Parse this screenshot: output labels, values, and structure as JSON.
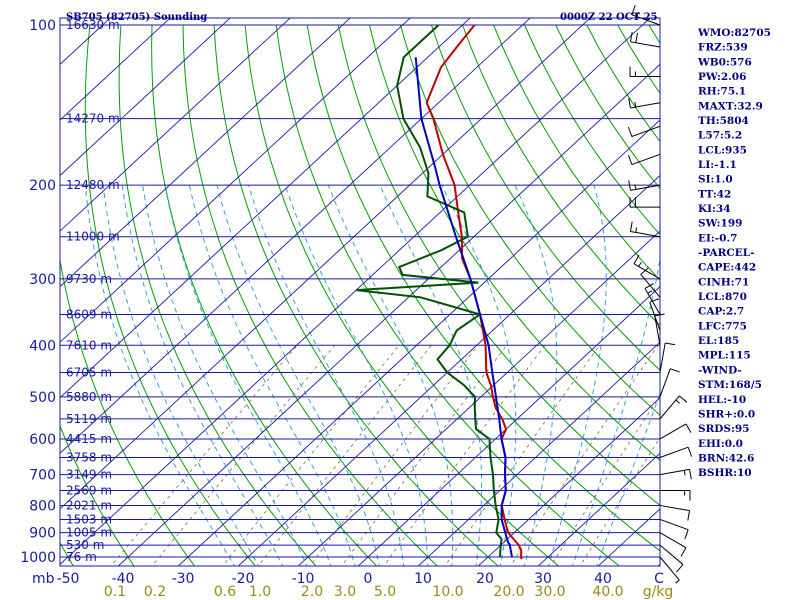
{
  "header": {
    "station_title": "SB705 (82705) Sounding",
    "time_label": "0000Z 22 OCT 25"
  },
  "indices": [
    "WMO:82705",
    "FRZ:539",
    "WB0:576",
    "PW:2.06",
    "RH:75.1",
    "MAXT:32.9",
    "TH:5804",
    "L57:5.2",
    "LCL:935",
    "LI:-1.1",
    "SI:1.0",
    "TT:42",
    "KI:34",
    "SW:199",
    "EI:-0.7",
    "-PARCEL-",
    "CAPE:442",
    "CINH:71",
    "LCL:870",
    "CAP:2.7",
    "LFC:775",
    "EL:185",
    "MPL:115",
    "-WIND-",
    "STM:168/5",
    "HEL:-10",
    "SHR+:0.0",
    "SRDS:95",
    "EHI:0.0",
    "BRN:42.6",
    "BSHR:10"
  ],
  "colors": {
    "isobar": "#1a1aa0",
    "isotherm": "#1a1aa0",
    "dry_adiabat": "#00a000",
    "moist_adiabat": "#3aa0d8",
    "mixing_ratio": "#7a6a3a",
    "temperature": "#c00000",
    "dewpoint": "#005000",
    "parcel": "#0000c0",
    "wind": "#000000"
  },
  "chart_data": {
    "type": "skew-t",
    "x_axis_unit_label": "mb",
    "temperature_axis_unit_label": "C",
    "mixing_ratio_unit_label": "g/kg",
    "pressure_levels": [
      {
        "p": 100,
        "label": "100",
        "height": "16630 m"
      },
      {
        "p": 150,
        "label": "",
        "height": "14270 m"
      },
      {
        "p": 200,
        "label": "200",
        "height": "12480 m"
      },
      {
        "p": 250,
        "label": "",
        "height": "11000 m"
      },
      {
        "p": 300,
        "label": "300",
        "height": "9730 m"
      },
      {
        "p": 350,
        "label": "",
        "height": "8609 m"
      },
      {
        "p": 400,
        "label": "400",
        "height": "7610 m"
      },
      {
        "p": 450,
        "label": "",
        "height": "6705 m"
      },
      {
        "p": 500,
        "label": "500",
        "height": "5880 m"
      },
      {
        "p": 550,
        "label": "",
        "height": "5119 m"
      },
      {
        "p": 600,
        "label": "600",
        "height": "4415 m"
      },
      {
        "p": 650,
        "label": "",
        "height": "3758 m"
      },
      {
        "p": 700,
        "label": "700",
        "height": "3149 m"
      },
      {
        "p": 750,
        "label": "",
        "height": "2569 m"
      },
      {
        "p": 800,
        "label": "800",
        "height": "2021 m"
      },
      {
        "p": 850,
        "label": "",
        "height": "1503 m"
      },
      {
        "p": 900,
        "label": "900",
        "height": "1005 m"
      },
      {
        "p": 950,
        "label": "",
        "height": "530 m"
      },
      {
        "p": 1000,
        "label": "1000",
        "height": "76 m"
      }
    ],
    "temperature_ticks": [
      "-50",
      "-40",
      "-30",
      "-20",
      "-10",
      "0",
      "10",
      "20",
      "30",
      "40",
      "C"
    ],
    "mixing_ratio_ticks": [
      "0.1",
      "0.2",
      "0.6",
      "1.0",
      "2.0",
      "3.0",
      "5.0",
      "10.0",
      "20.0",
      "30.0",
      "40.0",
      "g/kg"
    ],
    "mixing_ratio_values": [
      0.1,
      0.2,
      0.6,
      1.0,
      2.0,
      3.0,
      5.0,
      10.0,
      20.0,
      30.0,
      40.0
    ],
    "temperature_profile": [
      {
        "p": 1009,
        "t": 26.0
      },
      {
        "p": 1000,
        "t": 25.5
      },
      {
        "p": 975,
        "t": 24.5
      },
      {
        "p": 950,
        "t": 23.0
      },
      {
        "p": 925,
        "t": 21.0
      },
      {
        "p": 900,
        "t": 19.0
      },
      {
        "p": 875,
        "t": 17.5
      },
      {
        "p": 850,
        "t": 16.0
      },
      {
        "p": 800,
        "t": 13.0
      },
      {
        "p": 750,
        "t": 11.0
      },
      {
        "p": 700,
        "t": 8.0
      },
      {
        "p": 650,
        "t": 5.0
      },
      {
        "p": 600,
        "t": 1.0
      },
      {
        "p": 575,
        "t": 0.0
      },
      {
        "p": 550,
        "t": -2.5
      },
      {
        "p": 525,
        "t": -5.5
      },
      {
        "p": 500,
        "t": -8.0
      },
      {
        "p": 475,
        "t": -10.5
      },
      {
        "p": 450,
        "t": -13.5
      },
      {
        "p": 400,
        "t": -18.5
      },
      {
        "p": 350,
        "t": -25.0
      },
      {
        "p": 300,
        "t": -33.0
      },
      {
        "p": 275,
        "t": -38.0
      },
      {
        "p": 250,
        "t": -42.0
      },
      {
        "p": 225,
        "t": -47.0
      },
      {
        "p": 200,
        "t": -52.5
      },
      {
        "p": 175,
        "t": -60.0
      },
      {
        "p": 150,
        "t": -68.0
      },
      {
        "p": 140,
        "t": -72.0
      },
      {
        "p": 120,
        "t": -76.0
      },
      {
        "p": 110,
        "t": -77.0
      },
      {
        "p": 100,
        "t": -78.0
      }
    ],
    "dewpoint_profile": [
      {
        "p": 1000,
        "td": 22.0
      },
      {
        "p": 975,
        "td": 21.0
      },
      {
        "p": 950,
        "td": 20.0
      },
      {
        "p": 925,
        "td": 19.0
      },
      {
        "p": 900,
        "td": 17.0
      },
      {
        "p": 850,
        "td": 15.0
      },
      {
        "p": 800,
        "td": 12.0
      },
      {
        "p": 750,
        "td": 9.0
      },
      {
        "p": 700,
        "td": 6.0
      },
      {
        "p": 650,
        "td": 2.5
      },
      {
        "p": 600,
        "td": -1.0
      },
      {
        "p": 575,
        "td": -5.0
      },
      {
        "p": 550,
        "td": -7.0
      },
      {
        "p": 525,
        "td": -9.0
      },
      {
        "p": 500,
        "td": -11.0
      },
      {
        "p": 475,
        "td": -15.0
      },
      {
        "p": 450,
        "td": -20.0
      },
      {
        "p": 425,
        "td": -24.0
      },
      {
        "p": 400,
        "td": -24.5
      },
      {
        "p": 375,
        "td": -26.0
      },
      {
        "p": 350,
        "td": -25.0
      },
      {
        "p": 325,
        "td": -38.0
      },
      {
        "p": 315,
        "td": -50.0
      },
      {
        "p": 305,
        "td": -31.0
      },
      {
        "p": 295,
        "td": -45.0
      },
      {
        "p": 285,
        "td": -47.0
      },
      {
        "p": 265,
        "td": -43.0
      },
      {
        "p": 250,
        "td": -41.0
      },
      {
        "p": 225,
        "td": -46.0
      },
      {
        "p": 210,
        "td": -55.0
      },
      {
        "p": 190,
        "td": -59.0
      },
      {
        "p": 170,
        "td": -65.0
      },
      {
        "p": 150,
        "td": -73.0
      },
      {
        "p": 130,
        "td": -80.0
      },
      {
        "p": 115,
        "td": -84.0
      },
      {
        "p": 100,
        "td": -84.0
      }
    ],
    "parcel_profile": [
      {
        "p": 1000,
        "t": 24.0
      },
      {
        "p": 950,
        "t": 21.5
      },
      {
        "p": 935,
        "t": 20.5
      },
      {
        "p": 900,
        "t": 18.5
      },
      {
        "p": 850,
        "t": 15.5
      },
      {
        "p": 800,
        "t": 13.0
      },
      {
        "p": 750,
        "t": 11.0
      },
      {
        "p": 700,
        "t": 8.0
      },
      {
        "p": 650,
        "t": 5.0
      },
      {
        "p": 600,
        "t": 1.0
      },
      {
        "p": 550,
        "t": -3.0
      },
      {
        "p": 500,
        "t": -7.5
      },
      {
        "p": 450,
        "t": -12.5
      },
      {
        "p": 400,
        "t": -18.0
      },
      {
        "p": 350,
        "t": -25.0
      },
      {
        "p": 300,
        "t": -33.0
      },
      {
        "p": 250,
        "t": -43.0
      },
      {
        "p": 200,
        "t": -55.0
      },
      {
        "p": 185,
        "t": -59.0
      },
      {
        "p": 150,
        "t": -70.0
      },
      {
        "p": 115,
        "t": -82.0
      }
    ],
    "wind_barbs": [
      {
        "p": 100,
        "dir": 290,
        "spd": 15
      },
      {
        "p": 110,
        "dir": 280,
        "spd": 20
      },
      {
        "p": 125,
        "dir": 270,
        "spd": 15
      },
      {
        "p": 140,
        "dir": 260,
        "spd": 15
      },
      {
        "p": 155,
        "dir": 250,
        "spd": 10
      },
      {
        "p": 175,
        "dir": 250,
        "spd": 10
      },
      {
        "p": 200,
        "dir": 260,
        "spd": 15
      },
      {
        "p": 220,
        "dir": 270,
        "spd": 20
      },
      {
        "p": 250,
        "dir": 280,
        "spd": 15
      },
      {
        "p": 300,
        "dir": 300,
        "spd": 15
      },
      {
        "p": 325,
        "dir": 320,
        "spd": 10
      },
      {
        "p": 350,
        "dir": 330,
        "spd": 15
      },
      {
        "p": 375,
        "dir": 340,
        "spd": 10
      },
      {
        "p": 400,
        "dir": 350,
        "spd": 10
      },
      {
        "p": 450,
        "dir": 10,
        "spd": 10
      },
      {
        "p": 500,
        "dir": 20,
        "spd": 10
      },
      {
        "p": 550,
        "dir": 40,
        "spd": 15
      },
      {
        "p": 600,
        "dir": 60,
        "spd": 10
      },
      {
        "p": 650,
        "dir": 70,
        "spd": 10
      },
      {
        "p": 700,
        "dir": 80,
        "spd": 15
      },
      {
        "p": 750,
        "dir": 90,
        "spd": 15
      },
      {
        "p": 800,
        "dir": 100,
        "spd": 10
      },
      {
        "p": 850,
        "dir": 110,
        "spd": 10
      },
      {
        "p": 900,
        "dir": 120,
        "spd": 10
      },
      {
        "p": 950,
        "dir": 130,
        "spd": 10
      },
      {
        "p": 1000,
        "dir": 140,
        "spd": 5
      }
    ]
  }
}
